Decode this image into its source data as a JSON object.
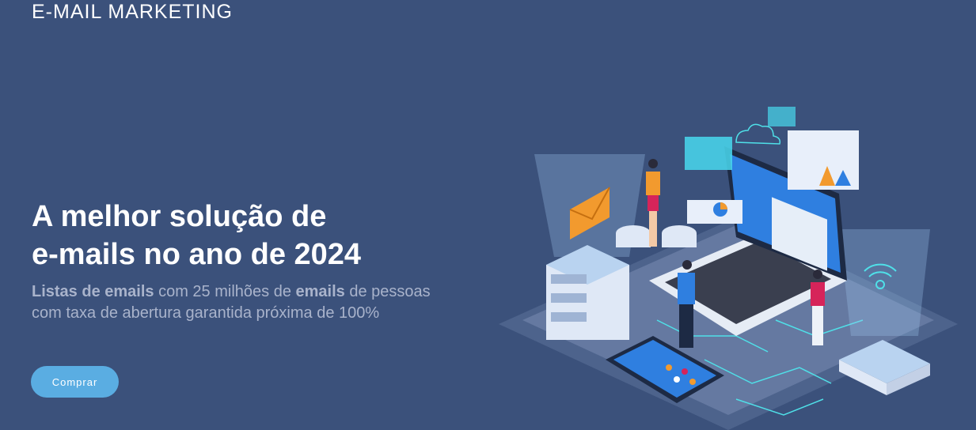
{
  "brand": {
    "title": "E-MAIL MARKETING"
  },
  "hero": {
    "headline_line1": "A melhor solução de",
    "headline_line2": "e-mails no ano de 2024",
    "sub_bold1": "Listas de emails",
    "sub_text1": " com 25 milhões de ",
    "sub_bold2": "emails",
    "sub_text2": " de pessoas",
    "sub_line2": "com taxa de abertura garantida próxima de 100%",
    "cta_label": "Comprar"
  },
  "colors": {
    "background": "#3b517b",
    "button": "#5aade2",
    "subtext": "#a9b3cb"
  }
}
